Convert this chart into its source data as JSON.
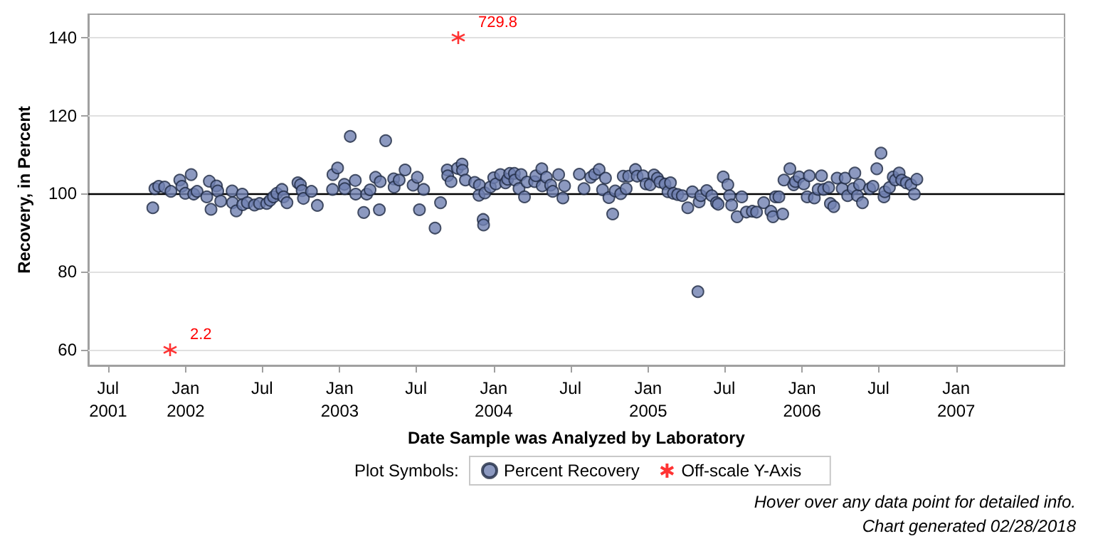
{
  "chart_data": {
    "type": "scatter",
    "xlabel": "Date Sample was Analyzed by Laboratory",
    "ylabel": "Recovery, in Percent",
    "legend_title": "Plot Symbols:",
    "legend": "bottom",
    "grid": "y",
    "marker": "circle",
    "xlim": [
      "2001-05-15",
      "2007-09-15"
    ],
    "xticks": [
      {
        "value": "2001-07-01",
        "label": "Jul\n2001"
      },
      {
        "value": "2002-01-01",
        "label": "Jan\n2002"
      },
      {
        "value": "2002-07-01",
        "label": "Jul"
      },
      {
        "value": "2003-01-01",
        "label": "Jan\n2003"
      },
      {
        "value": "2003-07-01",
        "label": "Jul"
      },
      {
        "value": "2004-01-01",
        "label": "Jan\n2004"
      },
      {
        "value": "2004-07-01",
        "label": "Jul"
      },
      {
        "value": "2005-01-01",
        "label": "Jan\n2005"
      },
      {
        "value": "2005-07-01",
        "label": "Jul"
      },
      {
        "value": "2006-01-01",
        "label": "Jan\n2006"
      },
      {
        "value": "2006-07-01",
        "label": "Jul"
      },
      {
        "value": "2007-01-01",
        "label": "Jan\n2007"
      }
    ],
    "ylim": [
      56,
      146
    ],
    "yticks": [
      60,
      80,
      100,
      120,
      140
    ],
    "ref_lines": [
      {
        "axis": "y",
        "value": 100,
        "color": "#000000"
      }
    ],
    "series": [
      {
        "name": "Percent Recovery",
        "color": "#6f7fb0",
        "x": [
          "2001-10-15",
          "2001-10-20",
          "2001-10-29",
          "2001-11-12",
          "2001-11-27",
          "2001-12-18",
          "2001-12-23",
          "2001-12-31",
          "2002-01-14",
          "2002-01-20",
          "2002-01-28",
          "2002-02-20",
          "2002-02-26",
          "2002-03-02",
          "2002-03-15",
          "2002-03-18",
          "2002-03-25",
          "2002-04-21",
          "2002-04-22",
          "2002-05-01",
          "2002-05-15",
          "2002-05-16",
          "2002-05-27",
          "2002-06-13",
          "2002-06-25",
          "2002-07-12",
          "2002-07-20",
          "2002-07-28",
          "2002-08-05",
          "2002-08-17",
          "2002-08-21",
          "2002-08-29",
          "2002-09-24",
          "2002-09-30",
          "2002-10-04",
          "2002-10-07",
          "2002-10-26",
          "2002-11-09",
          "2002-12-16",
          "2002-12-15",
          "2002-12-27",
          "2003-01-12",
          "2003-01-13",
          "2003-01-26",
          "2003-02-07",
          "2003-02-08",
          "2003-02-27",
          "2003-03-06",
          "2003-03-14",
          "2003-03-27",
          "2003-04-07",
          "2003-04-05",
          "2003-04-20",
          "2003-05-09",
          "2003-05-10",
          "2003-05-22",
          "2003-06-05",
          "2003-06-24",
          "2003-07-04",
          "2003-07-09",
          "2003-07-19",
          "2003-08-15",
          "2003-08-28",
          "2003-09-13",
          "2003-09-14",
          "2003-09-22",
          "2003-10-07",
          "2003-10-18",
          "2003-10-19",
          "2003-10-26",
          "2003-11-17",
          "2003-11-28",
          "2003-11-27",
          "2003-12-07",
          "2003-12-08",
          "2003-12-11",
          "2003-12-24",
          "2004-01-01",
          "2004-01-06",
          "2004-01-17",
          "2004-01-29",
          "2004-02-03",
          "2004-02-08",
          "2004-02-19",
          "2004-02-20",
          "2004-03-01",
          "2004-03-06",
          "2004-03-14",
          "2004-03-20",
          "2004-04-07",
          "2004-04-10",
          "2004-04-24",
          "2004-04-25",
          "2004-05-05",
          "2004-05-15",
          "2004-05-20",
          "2004-06-03",
          "2004-06-13",
          "2004-06-17",
          "2004-07-22",
          "2004-08-02",
          "2004-08-18",
          "2004-08-27",
          "2004-09-07",
          "2004-09-15",
          "2004-09-22",
          "2004-09-30",
          "2004-10-09",
          "2004-10-15",
          "2004-10-28",
          "2004-11-03",
          "2004-11-10",
          "2004-11-16",
          "2004-12-02",
          "2004-12-06",
          "2004-12-20",
          "2004-12-27",
          "2005-01-06",
          "2005-01-15",
          "2005-01-23",
          "2005-01-29",
          "2005-02-10",
          "2005-02-17",
          "2005-02-23",
          "2005-03-02",
          "2005-03-12",
          "2005-03-23",
          "2005-04-05",
          "2005-04-16",
          "2005-04-29",
          "2005-05-02",
          "2005-05-06",
          "2005-05-20",
          "2005-06-01",
          "2005-06-12",
          "2005-06-16",
          "2005-06-28",
          "2005-07-09",
          "2005-07-13",
          "2005-07-18",
          "2005-07-31",
          "2005-08-11",
          "2005-08-22",
          "2005-09-05",
          "2005-09-15",
          "2005-10-02",
          "2005-10-19",
          "2005-10-24",
          "2005-10-30",
          "2005-11-07",
          "2005-11-16",
          "2005-11-19",
          "2005-12-03",
          "2005-12-12",
          "2005-12-16",
          "2005-12-25",
          "2006-01-05",
          "2006-01-13",
          "2006-01-18",
          "2006-01-30",
          "2006-02-08",
          "2006-02-16",
          "2006-02-21",
          "2006-03-05",
          "2006-03-09",
          "2006-03-17",
          "2006-03-25",
          "2006-04-06",
          "2006-04-13",
          "2006-04-19",
          "2006-05-02",
          "2006-05-06",
          "2006-05-12",
          "2006-05-17",
          "2006-05-24",
          "2006-06-10",
          "2006-06-18",
          "2006-06-27",
          "2006-07-07",
          "2006-07-14",
          "2006-07-16",
          "2006-07-27",
          "2006-08-05",
          "2006-08-10",
          "2006-08-19",
          "2006-08-25",
          "2006-09-05",
          "2006-09-16",
          "2006-09-24",
          "2006-09-30"
        ],
        "values": [
          96.4,
          101.3,
          101.9,
          101.7,
          100.6,
          103.5,
          101.9,
          100.1,
          104.9,
          99.9,
          100.6,
          99.2,
          103.2,
          96.0,
          102.0,
          100.7,
          98.1,
          100.7,
          97.7,
          95.6,
          99.9,
          97.2,
          97.7,
          97.1,
          97.5,
          97.5,
          98.3,
          99.2,
          100.1,
          101.1,
          99.2,
          97.7,
          102.8,
          102.3,
          100.8,
          98.8,
          100.6,
          97.0,
          104.9,
          101.1,
          106.6,
          102.4,
          101.3,
          114.7,
          103.4,
          99.9,
          95.2,
          99.9,
          101.0,
          104.2,
          103.1,
          95.9,
          113.6,
          103.8,
          101.7,
          103.5,
          106.1,
          102.2,
          104.2,
          95.9,
          101.1,
          91.2,
          97.7,
          106.1,
          104.6,
          103.1,
          106.5,
          107.6,
          106.0,
          103.5,
          102.9,
          102.2,
          99.6,
          93.4,
          92.0,
          100.2,
          101.7,
          104.1,
          102.5,
          104.9,
          102.8,
          103.7,
          105.2,
          105.2,
          103.5,
          101.3,
          104.9,
          99.2,
          103.0,
          103.1,
          104.6,
          106.4,
          102.0,
          104.2,
          102.2,
          100.6,
          104.9,
          98.9,
          102.0,
          105.0,
          101.3,
          104.2,
          105.0,
          106.2,
          101.0,
          104.0,
          99.0,
          94.8,
          100.7,
          100.0,
          104.5,
          101.3,
          104.5,
          106.2,
          104.5,
          104.6,
          102.5,
          102.3,
          104.8,
          104.0,
          103.0,
          102.5,
          100.5,
          102.8,
          100.1,
          99.8,
          99.5,
          96.4,
          100.5,
          74.9,
          97.9,
          99.5,
          100.8,
          99.5,
          97.7,
          97.3,
          104.3,
          102.3,
          99.5,
          97.1,
          94.1,
          99.2,
          95.3,
          95.5,
          95.3,
          97.7,
          95.5,
          94.1,
          99.2,
          99.2,
          94.8,
          103.5,
          106.4,
          102.3,
          103.1,
          104.3,
          102.5,
          99.2,
          104.6,
          98.9,
          101.1,
          104.6,
          101.1,
          101.6,
          97.5,
          96.7,
          104.0,
          101.3,
          104.0,
          99.5,
          101.3,
          105.3,
          99.5,
          102.3,
          97.7,
          101.3,
          101.9,
          106.4,
          110.4,
          99.2,
          100.5,
          101.6,
          104.3,
          103.5,
          105.3,
          103.5,
          102.8,
          102.3,
          99.9,
          103.7
        ]
      },
      {
        "name": "Off-scale Y-Axis",
        "color": "#ff0000",
        "marker": "cross",
        "x": [
          "2001-11-25",
          "2003-10-09"
        ],
        "values": [
          60,
          140
        ]
      }
    ],
    "annotations": [
      {
        "text": "2.2",
        "x": "2001-11-25",
        "y": 60
      },
      {
        "text": "729.8",
        "x": "2003-10-09",
        "y": 140
      },
      "Hover over any data point for detailed info.",
      "Chart generated 02/28/2018"
    ]
  }
}
